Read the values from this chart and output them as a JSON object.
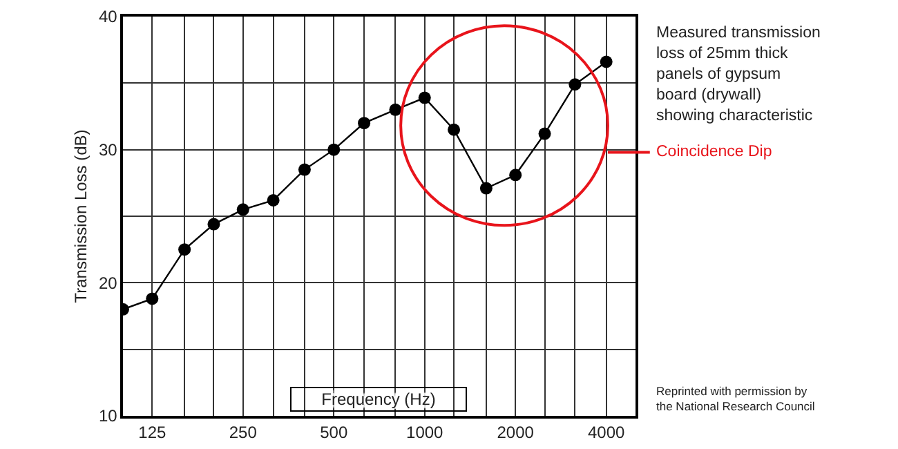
{
  "chart_data": {
    "type": "line",
    "xlabel": "Frequency (Hz)",
    "ylabel": "Transmission Loss (dB)",
    "x": [
      100,
      125,
      160,
      200,
      250,
      315,
      400,
      500,
      630,
      800,
      1000,
      1250,
      1600,
      2000,
      2500,
      3150,
      4000
    ],
    "series": [
      {
        "color": "#000000",
        "values": [
          18,
          18.8,
          22.5,
          24.4,
          25.5,
          26.2,
          28.5,
          30,
          32,
          33,
          33.9,
          31.5,
          27.1,
          28.1,
          31.2,
          34.9,
          36.6
        ]
      }
    ],
    "log": "x",
    "xlim": [
      100,
      5000
    ],
    "xticks": [
      {
        "value": 100,
        "label": null
      },
      125,
      {
        "value": 160,
        "label": null
      },
      {
        "value": 200,
        "label": null
      },
      250,
      {
        "value": 315,
        "label": null
      },
      {
        "value": 400,
        "label": null
      },
      500,
      {
        "value": 630,
        "label": null
      },
      {
        "value": 800,
        "label": null
      },
      1000,
      {
        "value": 1250,
        "label": null
      },
      {
        "value": 1600,
        "label": null
      },
      2000,
      {
        "value": 2500,
        "label": null
      },
      {
        "value": 3150,
        "label": null
      },
      4000,
      {
        "value": 5000,
        "label": null
      }
    ],
    "ylim": [
      10,
      40
    ],
    "yticks": [
      10,
      {
        "value": 15,
        "label": null
      },
      20,
      {
        "value": 25,
        "label": null
      },
      30,
      {
        "value": 35,
        "label": null
      },
      40
    ],
    "grid": true,
    "marker": "circle",
    "line_style": "solid",
    "annotations": [
      "Measured transmission\nloss of 25mm thick\npanels of gypsum\nboard (drywall)\nshowing characteristic",
      "Coincidence Dip",
      "Reprinted with permission by\nthe National Research Council"
    ]
  }
}
